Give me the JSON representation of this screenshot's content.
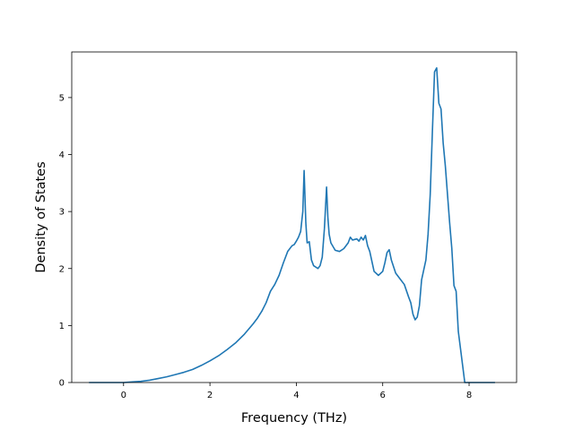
{
  "chart_data": {
    "type": "line",
    "title": "",
    "xlabel": "Frequency (THz)",
    "ylabel": "Density of States",
    "xlim": [
      -1.2,
      9.1
    ],
    "ylim": [
      0,
      5.8
    ],
    "xticks": [
      0,
      2,
      4,
      6,
      8
    ],
    "yticks": [
      0,
      1,
      2,
      3,
      4,
      5
    ],
    "grid": false,
    "legend": "none",
    "colors": {
      "line": "#1f77b4",
      "axes": "#000000",
      "background": "#ffffff"
    },
    "series": [
      {
        "x": [
          -0.8,
          -0.4,
          0.0,
          0.2,
          0.4,
          0.6,
          0.8,
          1.0,
          1.2,
          1.4,
          1.6,
          1.8,
          2.0,
          2.2,
          2.4,
          2.6,
          2.8,
          3.0,
          3.1,
          3.2,
          3.3,
          3.4,
          3.5,
          3.6,
          3.7,
          3.8,
          3.9,
          3.95,
          4.0,
          4.05,
          4.1,
          4.15,
          4.18,
          4.22,
          4.25,
          4.3,
          4.35,
          4.4,
          4.5,
          4.55,
          4.6,
          4.65,
          4.7,
          4.73,
          4.76,
          4.8,
          4.9,
          5.0,
          5.1,
          5.2,
          5.25,
          5.3,
          5.4,
          5.45,
          5.5,
          5.55,
          5.6,
          5.65,
          5.7,
          5.8,
          5.9,
          6.0,
          6.05,
          6.1,
          6.15,
          6.2,
          6.3,
          6.4,
          6.5,
          6.6,
          6.65,
          6.7,
          6.75,
          6.8,
          6.85,
          6.9,
          7.0,
          7.05,
          7.1,
          7.15,
          7.2,
          7.25,
          7.3,
          7.35,
          7.4,
          7.45,
          7.5,
          7.55,
          7.6,
          7.65,
          7.7,
          7.75,
          7.8,
          7.85,
          7.9,
          8.0,
          8.3,
          8.6
        ],
        "y": [
          0.0,
          0.0,
          0.0,
          0.01,
          0.02,
          0.04,
          0.07,
          0.1,
          0.14,
          0.18,
          0.23,
          0.3,
          0.38,
          0.47,
          0.58,
          0.7,
          0.85,
          1.03,
          1.13,
          1.25,
          1.4,
          1.6,
          1.72,
          1.88,
          2.1,
          2.3,
          2.4,
          2.42,
          2.48,
          2.55,
          2.65,
          3.0,
          3.72,
          2.8,
          2.45,
          2.47,
          2.15,
          2.05,
          2.0,
          2.05,
          2.2,
          2.7,
          3.43,
          2.9,
          2.6,
          2.45,
          2.32,
          2.3,
          2.35,
          2.45,
          2.55,
          2.5,
          2.52,
          2.48,
          2.55,
          2.5,
          2.58,
          2.4,
          2.3,
          1.95,
          1.88,
          1.95,
          2.1,
          2.28,
          2.33,
          2.15,
          1.92,
          1.82,
          1.72,
          1.5,
          1.4,
          1.2,
          1.1,
          1.15,
          1.35,
          1.8,
          2.15,
          2.6,
          3.3,
          4.4,
          5.45,
          5.52,
          4.9,
          4.8,
          4.2,
          3.8,
          3.3,
          2.8,
          2.35,
          1.7,
          1.6,
          0.9,
          0.6,
          0.3,
          0.0,
          0.0,
          0.0,
          0.0
        ]
      }
    ]
  }
}
